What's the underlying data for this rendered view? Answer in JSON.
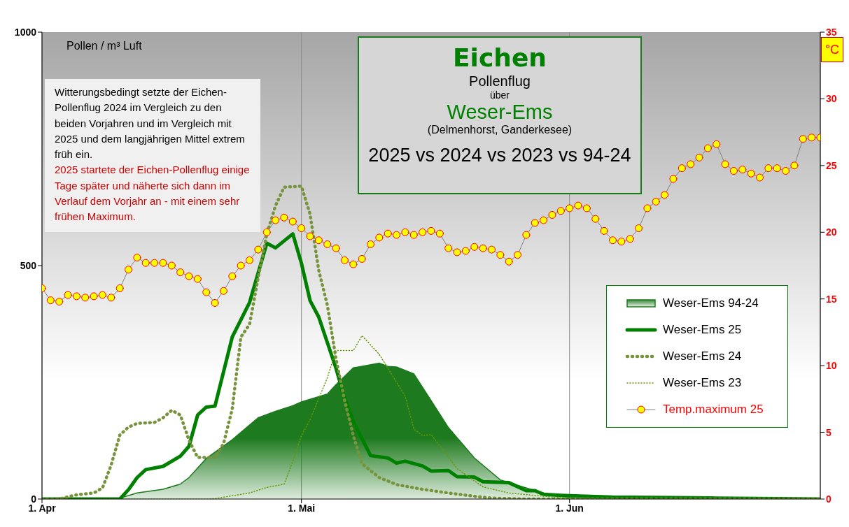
{
  "chart_data": {
    "type": "line",
    "title": "Eichen",
    "subtitle": "Pollenflug",
    "ylabel": "Pollen / m³  Luft",
    "y2label": "°C",
    "annotations": [
      "über",
      "Weser-Ems",
      "(Delmenhorst,  Ganderkesee)",
      "2025 vs 2024 vs 2023 vs 94-24",
      "Witterungsbedingt  setzte der Eichen-Pollenflug 2024 im Vergleich zu den beiden Vorjahren und im Vergleich mit 2025 und dem langjährigen Mittel extrem früh ein.",
      "2025 startete der Eichen-Pollenflug einige Tage später und näherte sich dann  im Verlauf dem Vorjahr an - mit einem sehr frühen Maximum."
    ],
    "x": [
      "--04-01",
      "--04-02",
      "--04-03",
      "--04-04",
      "--04-05",
      "--04-06",
      "--04-07",
      "--04-08",
      "--04-09",
      "--04-10",
      "--04-11",
      "--04-12",
      "--04-13",
      "--04-14",
      "--04-15",
      "--04-16",
      "--04-17",
      "--04-18",
      "--04-19",
      "--04-20",
      "--04-21",
      "--04-22",
      "--04-23",
      "--04-24",
      "--04-25",
      "--04-26",
      "--04-27",
      "--04-28",
      "--04-29",
      "--04-30",
      "--05-01",
      "--05-02",
      "--05-03",
      "--05-04",
      "--05-05",
      "--05-06",
      "--05-07",
      "--05-08",
      "--05-09",
      "--05-10",
      "--05-11",
      "--05-12",
      "--05-13",
      "--05-14",
      "--05-15",
      "--05-16",
      "--05-17",
      "--05-18",
      "--05-19",
      "--05-20",
      "--05-21",
      "--05-22",
      "--05-23",
      "--05-24",
      "--05-25",
      "--05-26",
      "--05-27",
      "--05-28",
      "--05-29",
      "--05-30",
      "--05-31",
      "--06-01",
      "--06-02",
      "--06-03",
      "--06-04",
      "--06-05",
      "--06-06",
      "--06-07",
      "--06-08",
      "--06-09",
      "--06-10",
      "--06-11",
      "--06-12",
      "--06-13",
      "--06-14",
      "--06-15",
      "--06-16",
      "--06-17",
      "--06-18",
      "--06-19",
      "--06-20",
      "--06-21",
      "--06-22",
      "--06-23",
      "--06-24",
      "--06-25",
      "--06-26",
      "--06-27",
      "--06-28",
      "--06-29",
      "--06-30"
    ],
    "xlim": [
      "--04-01",
      "--06-30"
    ],
    "xticks": [
      {
        "value": "--04-01",
        "label": "1. Apr"
      },
      {
        "value": "--05-01",
        "label": "1. Mai"
      },
      {
        "value": "--06-01",
        "label": "1. Jun"
      }
    ],
    "ylim": [
      0,
      1000
    ],
    "yticks": [
      0,
      500,
      1000
    ],
    "y2lim": [
      0,
      35
    ],
    "y2ticks": [
      0,
      5,
      10,
      15,
      20,
      25,
      30,
      35
    ],
    "grid": "x",
    "legend": "right",
    "marker": "none",
    "series": [
      {
        "name": "Weser-Ems 94-24",
        "type": "area",
        "color": "#1e7a1e",
        "line_style": "solid",
        "x": [
          "--04-01",
          "--04-10",
          "--04-12",
          "--04-15",
          "--04-17",
          "--04-18",
          "--04-20",
          "--04-23",
          "--04-24",
          "--04-26",
          "--04-28",
          "--04-30",
          "--05-01",
          "--05-04",
          "--05-05",
          "--05-07",
          "--05-10",
          "--05-11",
          "--05-12",
          "--05-14",
          "--05-16",
          "--05-18",
          "--05-21",
          "--05-24",
          "--05-28",
          "--05-30",
          "--06-01",
          "--06-10",
          "--06-30"
        ],
        "values": [
          0,
          2,
          13,
          21,
          32,
          46,
          87,
          127,
          143,
          174,
          188,
          200,
          208,
          225,
          245,
          281,
          291,
          284,
          283,
          268,
          211,
          153,
          88,
          41,
          18,
          8,
          4,
          1,
          0
        ]
      },
      {
        "name": "Weser-Ems 25",
        "color": "#008000",
        "line_style": "solid",
        "x": [
          "--04-01",
          "--04-10",
          "--04-11",
          "--04-12",
          "--04-13",
          "--04-15",
          "--04-17",
          "--04-18",
          "--04-19",
          "--04-20",
          "--04-21",
          "--04-23",
          "--04-25",
          "--04-27",
          "--04-28",
          "--04-30",
          "--05-01",
          "--05-02",
          "--05-03",
          "--05-04",
          "--05-05",
          "--05-06",
          "--05-07",
          "--05-09",
          "--05-11",
          "--05-12",
          "--05-13",
          "--05-15",
          "--05-16",
          "--05-18",
          "--05-19",
          "--05-21",
          "--05-22",
          "--05-25",
          "--05-27",
          "--05-28",
          "--05-29",
          "--05-31",
          "--06-01",
          "--06-06",
          "--06-18",
          "--06-30"
        ],
        "values": [
          0,
          0,
          20,
          46,
          63,
          70,
          92,
          113,
          180,
          197,
          199,
          347,
          421,
          548,
          538,
          568,
          505,
          425,
          390,
          335,
          280,
          216,
          166,
          93,
          88,
          77,
          81,
          71,
          60,
          61,
          48,
          47,
          37,
          35,
          18,
          18,
          10,
          8,
          7,
          4,
          2,
          0
        ]
      },
      {
        "name": "Weser-Ems 24",
        "color": "#77933c",
        "line_style": "dotted",
        "x": [
          "--04-01",
          "--04-03",
          "--04-04",
          "--04-05",
          "--04-07",
          "--04-08",
          "--04-09",
          "--04-10",
          "--04-11",
          "--04-12",
          "--04-14",
          "--04-15",
          "--04-16",
          "--04-17",
          "--04-18",
          "--04-19",
          "--04-21",
          "--04-22",
          "--04-23",
          "--04-24",
          "--04-25",
          "--04-26",
          "--04-27",
          "--04-28",
          "--04-29",
          "--05-01",
          "--05-02",
          "--05-03",
          "--05-04",
          "--05-05",
          "--05-06",
          "--05-07",
          "--05-08",
          "--05-10",
          "--05-12",
          "--05-15",
          "--05-18",
          "--05-21",
          "--05-23",
          "--05-27",
          "--06-30"
        ],
        "values": [
          0,
          0,
          5,
          9,
          13,
          24,
          73,
          137,
          154,
          162,
          164,
          174,
          190,
          180,
          126,
          89,
          89,
          119,
          193,
          347,
          374,
          474,
          568,
          628,
          668,
          670,
          610,
          490,
          415,
          300,
          211,
          136,
          76,
          46,
          31,
          21,
          13,
          6,
          2,
          0,
          0
        ]
      },
      {
        "name": "Weser-Ems 23",
        "color": "#669900",
        "line_style": "dotted",
        "x": [
          "--04-01",
          "--04-20",
          "--04-21",
          "--04-25",
          "--04-27",
          "--04-29",
          "--04-30",
          "--05-01",
          "--05-02",
          "--05-04",
          "--05-05",
          "--05-07",
          "--05-08",
          "--05-10",
          "--05-11",
          "--05-13",
          "--05-14",
          "--05-15",
          "--05-16",
          "--05-18",
          "--05-19",
          "--05-22",
          "--05-25",
          "--05-29",
          "--06-02",
          "--06-30"
        ],
        "values": [
          0,
          0,
          1,
          13,
          25,
          32,
          81,
          136,
          170,
          260,
          318,
          318,
          350,
          310,
          280,
          220,
          150,
          136,
          138,
          90,
          65,
          26,
          13,
          6,
          0,
          0
        ]
      },
      {
        "name": "Temp.maximum 25",
        "color": "#ffff00",
        "axis": "y2",
        "marker": "circle",
        "line_style": "solid",
        "values": [
          15.8,
          14.9,
          14.8,
          15.3,
          15.2,
          15.1,
          15.2,
          15.3,
          15.1,
          15.8,
          17.2,
          18.1,
          17.7,
          17.7,
          17.7,
          17.5,
          17.0,
          16.7,
          16.5,
          15.5,
          14.7,
          15.6,
          16.7,
          17.5,
          17.9,
          18.7,
          20.0,
          20.9,
          21.1,
          20.8,
          20.3,
          19.7,
          19.4,
          19.1,
          18.8,
          17.9,
          17.6,
          18.0,
          19.1,
          19.6,
          19.9,
          19.8,
          20.0,
          19.8,
          20.0,
          20.1,
          19.9,
          18.8,
          18.5,
          18.6,
          18.9,
          18.8,
          18.7,
          18.3,
          17.8,
          18.3,
          19.8,
          20.7,
          20.9,
          21.3,
          21.6,
          21.8,
          22.0,
          21.8,
          21.0,
          20.1,
          19.4,
          19.3,
          19.5,
          20.3,
          21.8,
          22.3,
          22.8,
          24.0,
          24.8,
          25.1,
          25.6,
          26.3,
          26.6,
          25.1,
          24.6,
          24.7,
          24.4,
          24.1,
          24.8,
          24.8,
          24.6,
          25.0,
          27.0,
          27.1,
          27.1
        ]
      }
    ]
  }
}
